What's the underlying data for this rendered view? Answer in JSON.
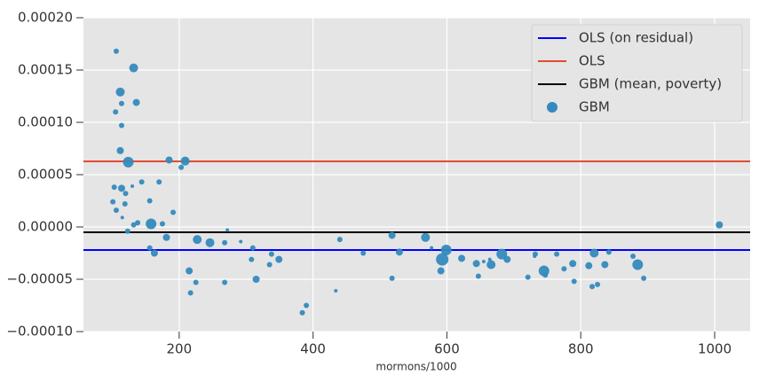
{
  "chart_data": {
    "type": "scatter",
    "x_label": "mormons/1000",
    "xlim": [
      57,
      1053
    ],
    "ylim": [
      -0.0001,
      0.0002
    ],
    "xticks": [
      200,
      400,
      600,
      800,
      1000
    ],
    "yticks": [
      {
        "value": 0.0002,
        "label": "0.00020"
      },
      {
        "value": 0.00015,
        "label": "0.00015"
      },
      {
        "value": 0.0001,
        "label": "0.00010"
      },
      {
        "value": 5e-05,
        "label": "0.00005"
      },
      {
        "value": 0,
        "label": "0.00000"
      },
      {
        "value": -5e-05,
        "label": "−0.00005"
      },
      {
        "value": -0.0001,
        "label": "−0.00010"
      }
    ],
    "grid": true,
    "legend": "upper right",
    "series": [
      {
        "name": "OLS (on residual)",
        "type": "hline",
        "color": "#0000ff",
        "value": -2.2e-05
      },
      {
        "name": "OLS",
        "type": "hline",
        "color": "#e24a33",
        "value": 6.27e-05
      },
      {
        "name": "GBM (mean, poverty)",
        "type": "hline",
        "color": "#000000",
        "value": -5.1e-06
      },
      {
        "name": "GBM",
        "type": "scatter",
        "color": "#348abd",
        "x": [
          106,
          132,
          112,
          114,
          136,
          105,
          114,
          112,
          124,
          185,
          209,
          203,
          170,
          144,
          103,
          114,
          120,
          130,
          101,
          156,
          119,
          106,
          191,
          115,
          138,
          132,
          158,
          175,
          123,
          272,
          227,
          246,
          268,
          292,
          156,
          163,
          181,
          310,
          338,
          308,
          335,
          349,
          215,
          225,
          217,
          268,
          315,
          390,
          384,
          434,
          440,
          475,
          518,
          518,
          568,
          577,
          599,
          593,
          591,
          529,
          622,
          644,
          655,
          647,
          666,
          664,
          682,
          690,
          721,
          731,
          732,
          745,
          747,
          764,
          775,
          788,
          790,
          812,
          820,
          817,
          825,
          836,
          842,
          878,
          885,
          894,
          1007
        ],
        "values": [
          0.000168,
          0.000152,
          0.000129,
          0.000118,
          0.000119,
          0.00011,
          9.7e-05,
          7.3e-05,
          6.2e-05,
          6.4e-05,
          6.3e-05,
          5.7e-05,
          4.3e-05,
          4.3e-05,
          3.8e-05,
          3.7e-05,
          3.2e-05,
          3.9e-05,
          2.4e-05,
          2.5e-05,
          2.2e-05,
          1.6e-05,
          1.4e-05,
          9e-06,
          4e-06,
          2e-06,
          3e-06,
          3e-06,
          -4e-06,
          -3e-06,
          -1.2e-05,
          -1.5e-05,
          -1.5e-05,
          -1.4e-05,
          -2e-05,
          -2.5e-05,
          -1e-05,
          -2e-05,
          -2.6e-05,
          -3.1e-05,
          -3.6e-05,
          -3.1e-05,
          -4.2e-05,
          -5.3e-05,
          -6.3e-05,
          -5.3e-05,
          -5e-05,
          -7.5e-05,
          -8.2e-05,
          -6.1e-05,
          -1.2e-05,
          -2.5e-05,
          -8e-06,
          -4.9e-05,
          -1e-05,
          -2e-05,
          -2.2e-05,
          -3.1e-05,
          -4.2e-05,
          -2.4e-05,
          -3e-05,
          -3.5e-05,
          -3.3e-05,
          -4.7e-05,
          -3.6e-05,
          -3.1e-05,
          -2.6e-05,
          -3.1e-05,
          -4.8e-05,
          -2.8e-05,
          -2.6e-05,
          -4.2e-05,
          -4.6e-05,
          -2.6e-05,
          -4e-05,
          -3.5e-05,
          -5.2e-05,
          -3.7e-05,
          -2.5e-05,
          -5.7e-05,
          -5.5e-05,
          -3.6e-05,
          -2.4e-05,
          -2.8e-05,
          -3.6e-05,
          -4.9e-05,
          2e-06
        ],
        "sizes": [
          3,
          5,
          5,
          3,
          4,
          3,
          3,
          4,
          6,
          4,
          5,
          3,
          3,
          3,
          3,
          4,
          3,
          2,
          3,
          3,
          3,
          3,
          3,
          2,
          3,
          3,
          6,
          3,
          3,
          2,
          5,
          5,
          3,
          2,
          3,
          4,
          4,
          3,
          3,
          3,
          3,
          4,
          4,
          3,
          3,
          3,
          4,
          3,
          3,
          2,
          3,
          3,
          4,
          3,
          5,
          2,
          6,
          7,
          4,
          4,
          4,
          4,
          2,
          3,
          5,
          2,
          6,
          4,
          3,
          2,
          3,
          6,
          3,
          3,
          3,
          4,
          3,
          4,
          5,
          3,
          3,
          4,
          3,
          3,
          6,
          3,
          4
        ]
      }
    ]
  }
}
